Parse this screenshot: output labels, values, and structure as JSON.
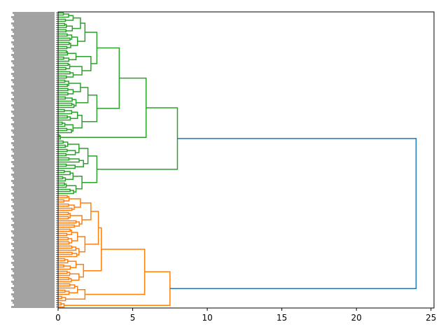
{
  "chart_data": {
    "type": "dendrogram",
    "orientation": "left",
    "title": "",
    "xlabel": "",
    "ylabel": "",
    "xlim": [
      0,
      25.2
    ],
    "xticks": [
      0,
      5,
      10,
      15,
      20,
      25
    ],
    "grid": false,
    "colors": {
      "above_threshold": "#1f77b4",
      "cluster_1": "#2ca02c",
      "cluster_2": "#ff7f0e"
    },
    "tree": {
      "h": 24.0,
      "color": "#1f77b4",
      "c": [
        {
          "h": 8.0,
          "color": "#2ca02c",
          "c": [
            {
              "h": 5.9,
              "c": [
                {
                  "h": 4.1,
                  "c": [
                    {
                      "h": 2.6,
                      "c": [
                        {
                          "h": 1.8,
                          "c": [
                            {
                              "n": 10,
                              "h": 1.5
                            },
                            {
                              "n": 8,
                              "h": 1.3
                            }
                          ]
                        },
                        {
                          "h": 2.2,
                          "c": [
                            {
                              "n": 6,
                              "h": 1.2
                            },
                            {
                              "n": 8,
                              "h": 1.6
                            }
                          ]
                        }
                      ]
                    },
                    {
                      "h": 2.6,
                      "c": [
                        {
                          "h": 2.0,
                          "c": [
                            {
                              "n": 8,
                              "h": 1.5
                            },
                            {
                              "n": 6,
                              "h": 1.2
                            }
                          ]
                        },
                        {
                          "h": 1.6,
                          "c": [
                            {
                              "n": 6,
                              "h": 1.3
                            },
                            {
                              "n": 6,
                              "h": 1.0
                            }
                          ]
                        }
                      ]
                    }
                  ]
                },
                {
                  "n": 3,
                  "h": 0.15
                }
              ]
            },
            {
              "h": 2.6,
              "c": [
                {
                  "h": 2.0,
                  "c": [
                    {
                      "n": 8,
                      "h": 1.4
                    },
                    {
                      "n": 6,
                      "h": 1.7
                    }
                  ]
                },
                {
                  "h": 1.6,
                  "c": [
                    {
                      "n": 6,
                      "h": 1.0
                    },
                    {
                      "n": 6,
                      "h": 1.2
                    }
                  ]
                }
              ]
            }
          ]
        },
        {
          "h": 7.5,
          "color": "#ff7f0e",
          "c": [
            {
              "h": 5.8,
              "c": [
                {
                  "h": 2.9,
                  "c": [
                    {
                      "h": 2.7,
                      "c": [
                        {
                          "h": 2.2,
                          "c": [
                            {
                              "n": 8,
                              "h": 1.5
                            },
                            {
                              "n": 8,
                              "h": 1.6
                            }
                          ]
                        },
                        {
                          "h": 1.8,
                          "c": [
                            {
                              "n": 8,
                              "h": 1.3
                            },
                            {
                              "n": 6,
                              "h": 1.4
                            }
                          ]
                        }
                      ]
                    },
                    {
                      "h": 1.7,
                      "c": [
                        {
                          "n": 6,
                          "h": 1.2
                        },
                        {
                          "n": 6,
                          "h": 1.4
                        }
                      ]
                    }
                  ]
                },
                {
                  "h": 1.8,
                  "c": [
                    {
                      "n": 6,
                      "h": 1.3
                    },
                    {
                      "n": 3,
                      "h": 0.5
                    }
                  ]
                }
              ]
            },
            {
              "h": 0.4,
              "c": [
                {
                  "n": 2,
                  "h": 0.2
                },
                {
                  "n": 1,
                  "h": 0
                }
              ]
            }
          ]
        }
      ]
    }
  }
}
